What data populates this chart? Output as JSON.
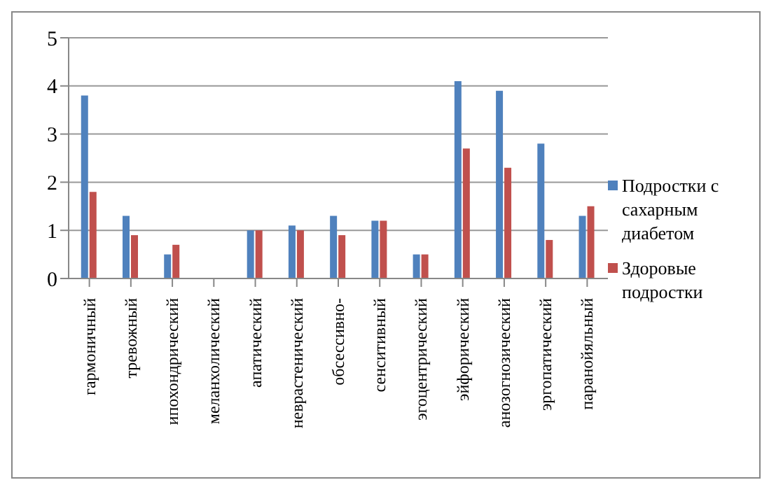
{
  "chart_data": {
    "type": "bar",
    "categories": [
      "гармоничный",
      "тревожный",
      "ипохондрический",
      "меланхолический",
      "апатический",
      "неврастенический",
      "обсессивно-",
      "сенситивный",
      "эгоцентрический",
      "эйфорический",
      "анозогнозический",
      "эргопатический",
      "паранойяльный"
    ],
    "series": [
      {
        "name": "Подростки с сахарным диабетом",
        "color": "#4f81bd",
        "values": [
          3.8,
          1.3,
          0.5,
          null,
          1.0,
          1.1,
          1.3,
          1.2,
          0.5,
          4.1,
          3.9,
          2.8,
          1.3
        ]
      },
      {
        "name": "Здоровые подростки",
        "color": "#c0504d",
        "values": [
          1.8,
          0.9,
          0.7,
          null,
          1.0,
          1.0,
          0.9,
          1.2,
          0.5,
          2.7,
          2.3,
          0.8,
          1.5
        ]
      }
    ],
    "ylim": [
      0,
      5
    ],
    "yticks": [
      0,
      1,
      2,
      3,
      4,
      5
    ],
    "grid": "y",
    "legend": "right"
  }
}
